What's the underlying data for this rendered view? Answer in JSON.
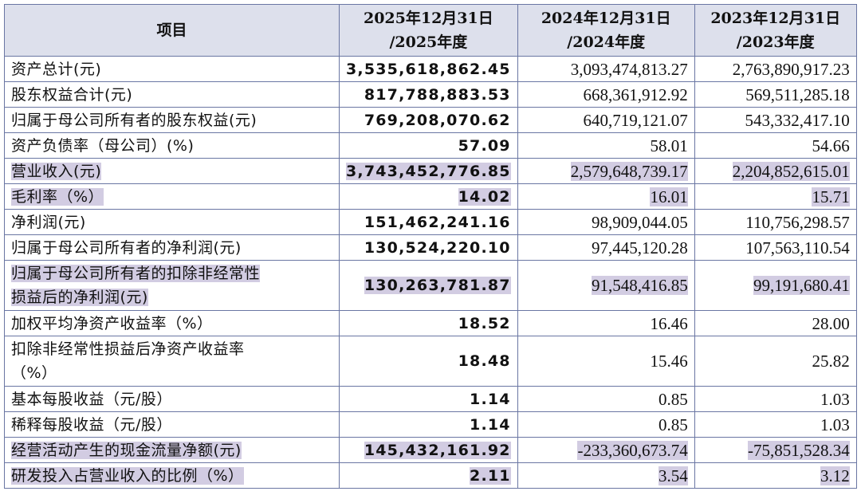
{
  "table": {
    "header": [
      [
        "项目"
      ],
      [
        "2025年12月31日",
        "/2025年度"
      ],
      [
        "2024年12月31日",
        "/2024年度"
      ],
      [
        "2023年12月31日",
        "/2023年度"
      ]
    ],
    "rows": [
      {
        "label": [
          "资产总计(元)"
        ],
        "values": [
          "3,535,618,862.45",
          "3,093,474,813.27",
          "2,763,890,917.23"
        ]
      },
      {
        "label": [
          "股东权益合计(元)"
        ],
        "values": [
          "817,788,883.53",
          "668,361,912.92",
          "569,511,285.18"
        ]
      },
      {
        "label": [
          "归属于母公司所有者的股东权益(元)"
        ],
        "values": [
          "769,208,070.62",
          "640,719,121.07",
          "543,332,417.10"
        ]
      },
      {
        "label": [
          "资产负债率（母公司）(%)"
        ],
        "values": [
          "57.09",
          "58.01",
          "54.66"
        ]
      },
      {
        "label": [
          "营业收入(元)"
        ],
        "values": [
          "3,743,452,776.85",
          "2,579,648,739.17",
          "2,204,852,615.01"
        ],
        "highlight": true
      },
      {
        "label": [
          "毛利率（%）"
        ],
        "values": [
          "14.02",
          "16.01",
          "15.71"
        ],
        "highlight": true
      },
      {
        "label": [
          "净利润(元)"
        ],
        "values": [
          "151,462,241.16",
          "98,909,044.05",
          "110,756,298.57"
        ]
      },
      {
        "label": [
          "归属于母公司所有者的净利润(元)"
        ],
        "values": [
          "130,524,220.10",
          "97,445,120.28",
          "107,563,110.54"
        ]
      },
      {
        "label": [
          "归属于母公司所有者的扣除非经常性",
          "损益后的净利润(元)"
        ],
        "values": [
          "130,263,781.87",
          "91,548,416.85",
          "99,191,680.41"
        ],
        "highlight": true
      },
      {
        "label": [
          "加权平均净资产收益率（%）"
        ],
        "values": [
          "18.52",
          "16.46",
          "28.00"
        ]
      },
      {
        "label": [
          "扣除非经常性损益后净资产收益率",
          "（%）"
        ],
        "values": [
          "18.48",
          "15.46",
          "25.82"
        ]
      },
      {
        "label": [
          "基本每股收益（元/股）"
        ],
        "values": [
          "1.14",
          "0.85",
          "1.03"
        ]
      },
      {
        "label": [
          "稀释每股收益（元/股）"
        ],
        "values": [
          "1.14",
          "0.85",
          "1.03"
        ]
      },
      {
        "label": [
          "经营活动产生的现金流量净额(元)"
        ],
        "values": [
          "145,432,161.92",
          "-233,360,673.74",
          "-75,851,528.34"
        ],
        "highlight": true
      },
      {
        "label": [
          "研发投入占营业收入的比例（%）"
        ],
        "values": [
          "2.11",
          "3.54",
          "3.12"
        ],
        "highlight": true
      }
    ]
  }
}
